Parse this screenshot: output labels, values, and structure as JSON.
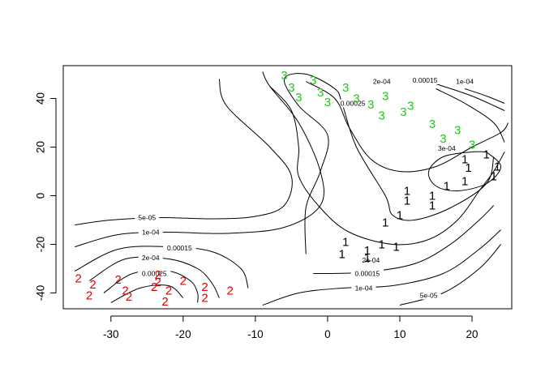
{
  "chart_data": {
    "type": "contour",
    "title": "",
    "xlabel": "",
    "ylabel": "",
    "xlim": [
      -36.6,
      25.5
    ],
    "ylim": [
      -46.5,
      53.5
    ],
    "x_ticks": [
      -30,
      -20,
      -10,
      0,
      10,
      20
    ],
    "y_ticks": [
      -40,
      -20,
      0,
      20,
      40
    ],
    "grid": false,
    "legend": "none",
    "colors": {
      "1": "#000000",
      "2": "#df0000",
      "3": "#1ec81e"
    },
    "contours": [
      {
        "label": "5e-05",
        "label_at": [
          -25.0,
          -9.0
        ],
        "points": [
          [
            -35,
            -12
          ],
          [
            -30,
            -10
          ],
          [
            -23,
            -9
          ],
          [
            -16,
            -9.5
          ],
          [
            -10,
            -8.5
          ],
          [
            -6,
            -4
          ],
          [
            -5,
            8
          ],
          [
            -8,
            20
          ],
          [
            -14,
            37
          ],
          [
            -15,
            48
          ]
        ]
      },
      {
        "label": "1e-04",
        "label_at": [
          -24.5,
          -15.0
        ],
        "points": [
          [
            -35,
            -21
          ],
          [
            -29,
            -16
          ],
          [
            -22,
            -15
          ],
          [
            -14,
            -15.5
          ],
          [
            -6,
            -13
          ],
          [
            -1,
            -4
          ],
          [
            -1,
            10
          ],
          [
            -4,
            30
          ],
          [
            -8,
            45
          ],
          [
            -9,
            51
          ]
        ]
      },
      {
        "label": "0.00015",
        "label_at": [
          -20.5,
          -21.5
        ],
        "points": [
          [
            -35,
            -31
          ],
          [
            -29,
            -22
          ],
          [
            -22,
            -21
          ],
          [
            -16,
            -23
          ],
          [
            -12,
            -30
          ],
          [
            -11,
            -38
          ]
        ]
      },
      {
        "label": "2e-04",
        "label_at": [
          -24.5,
          -25.5
        ],
        "points": [
          [
            -33,
            -35
          ],
          [
            -28,
            -26
          ],
          [
            -22,
            -26
          ],
          [
            -18,
            -30
          ],
          [
            -16,
            -36
          ],
          [
            -15,
            -42
          ]
        ]
      },
      {
        "label": "0.00025",
        "label_at": [
          -24.0,
          -32.0
        ],
        "points": [
          [
            -31,
            -40
          ],
          [
            -27,
            -32
          ],
          [
            -22,
            -31
          ],
          [
            -19,
            -35
          ],
          [
            -18,
            -40
          ],
          [
            -18,
            -44
          ]
        ]
      },
      {
        "label": "",
        "label_at": null,
        "points": [
          [
            -30,
            -44
          ],
          [
            -26,
            -38
          ],
          [
            -22,
            -37
          ],
          [
            -20,
            -42
          ]
        ]
      },
      {
        "label": "5e-05",
        "label_at": [
          14.0,
          -41.0
        ],
        "points": [
          [
            10,
            -45
          ],
          [
            16,
            -40
          ],
          [
            21,
            -30
          ],
          [
            24,
            -20
          ]
        ]
      },
      {
        "label": "1e-04",
        "label_at": [
          5.0,
          -38.0
        ],
        "points": [
          [
            -9,
            -45
          ],
          [
            -4,
            -40
          ],
          [
            2,
            -38
          ],
          [
            9,
            -37
          ],
          [
            16,
            -32
          ],
          [
            21,
            -22
          ],
          [
            24,
            -14
          ]
        ]
      },
      {
        "label": "0.00015",
        "label_at": [
          5.5,
          -32.0
        ],
        "points": [
          [
            -2,
            -32
          ],
          [
            5,
            -31.5
          ],
          [
            12,
            -28
          ],
          [
            17,
            -20
          ],
          [
            21,
            -10
          ],
          [
            23,
            -4
          ]
        ]
      },
      {
        "label": "2e-04",
        "label_at": [
          6.0,
          -26.5
        ],
        "points": [
          [
            -3,
            -24
          ],
          [
            -3,
            -5
          ],
          [
            -1,
            10
          ],
          [
            0,
            25
          ],
          [
            -4,
            37
          ],
          [
            -6,
            48
          ],
          [
            -3,
            50
          ],
          [
            1,
            44
          ],
          [
            2,
            38
          ],
          [
            4,
            20
          ],
          [
            8,
            0
          ],
          [
            9,
            -8
          ],
          [
            12,
            -10
          ],
          [
            17,
            -5
          ],
          [
            22,
            5
          ],
          [
            23,
            16
          ]
        ]
      },
      {
        "label": "2e-04",
        "label_at": [
          7.5,
          47.0
        ],
        "points": [
          [
            15,
            44
          ],
          [
            19,
            38
          ],
          [
            23,
            30
          ],
          [
            24.5,
            22
          ]
        ]
      },
      {
        "label": "1e-04",
        "label_at": [
          19.0,
          47.0
        ],
        "points": [
          [
            19,
            44
          ],
          [
            22,
            41
          ],
          [
            24.5,
            38
          ]
        ]
      },
      {
        "label": "0.00015",
        "label_at": [
          13.5,
          47.5
        ],
        "points": [
          [
            15,
            46
          ],
          [
            20,
            41
          ],
          [
            24.5,
            35
          ]
        ]
      },
      {
        "label": "0.00025",
        "label_at": [
          3.5,
          38.0
        ],
        "points": [
          [
            -8,
            45
          ],
          [
            -5,
            35
          ],
          [
            -4,
            20
          ],
          [
            -4,
            8
          ],
          [
            -1,
            -5
          ],
          [
            3,
            -15
          ],
          [
            9,
            -20
          ],
          [
            14,
            -18
          ],
          [
            18,
            -10
          ],
          [
            21,
            2
          ],
          [
            23,
            10
          ],
          [
            24.5,
            18
          ]
        ]
      },
      {
        "label": "",
        "label_at": null,
        "points": [
          [
            -3,
            47
          ],
          [
            1,
            40
          ],
          [
            3,
            28
          ],
          [
            6,
            15
          ],
          [
            10,
            10
          ],
          [
            15,
            12
          ],
          [
            20,
            20
          ],
          [
            24,
            26
          ],
          [
            25,
            30
          ]
        ]
      },
      {
        "label": "3e-04",
        "label_at": [
          16.5,
          19.5
        ],
        "points": [
          [
            22,
            18
          ],
          [
            20,
            18
          ],
          [
            16,
            16
          ],
          [
            14,
            10
          ],
          [
            15,
            4
          ],
          [
            18,
            2
          ],
          [
            22,
            5
          ],
          [
            24,
            12
          ],
          [
            22,
            18
          ]
        ]
      }
    ],
    "points": [
      {
        "group": "1",
        "x": 2,
        "y": -24
      },
      {
        "group": "1",
        "x": 2.5,
        "y": -19
      },
      {
        "group": "1",
        "x": 5.5,
        "y": -22.5
      },
      {
        "group": "1",
        "x": 5.5,
        "y": -25.5
      },
      {
        "group": "1",
        "x": 7.5,
        "y": -20
      },
      {
        "group": "1",
        "x": 9.5,
        "y": -21
      },
      {
        "group": "1",
        "x": 8,
        "y": -11
      },
      {
        "group": "1",
        "x": 10,
        "y": -8
      },
      {
        "group": "1",
        "x": 11,
        "y": -2
      },
      {
        "group": "1",
        "x": 11,
        "y": 2
      },
      {
        "group": "1",
        "x": 14.5,
        "y": -4
      },
      {
        "group": "1",
        "x": 14.5,
        "y": 0
      },
      {
        "group": "1",
        "x": 16.5,
        "y": 4
      },
      {
        "group": "1",
        "x": 19,
        "y": 6
      },
      {
        "group": "1",
        "x": 19,
        "y": 15
      },
      {
        "group": "1",
        "x": 19.5,
        "y": 11.5
      },
      {
        "group": "1",
        "x": 22,
        "y": 17
      },
      {
        "group": "1",
        "x": 23,
        "y": 8
      },
      {
        "group": "1",
        "x": 23.5,
        "y": 12
      },
      {
        "group": "2",
        "x": -34.5,
        "y": -34
      },
      {
        "group": "2",
        "x": -32.5,
        "y": -36.5
      },
      {
        "group": "2",
        "x": -33,
        "y": -41
      },
      {
        "group": "2",
        "x": -29,
        "y": -34.5
      },
      {
        "group": "2",
        "x": -28,
        "y": -39
      },
      {
        "group": "2",
        "x": -27.5,
        "y": -41.5
      },
      {
        "group": "2",
        "x": -24,
        "y": -37.5
      },
      {
        "group": "2",
        "x": -23.5,
        "y": -32.5
      },
      {
        "group": "2",
        "x": -23.5,
        "y": -35.5
      },
      {
        "group": "2",
        "x": -22,
        "y": -39
      },
      {
        "group": "2",
        "x": -22.5,
        "y": -43.5
      },
      {
        "group": "2",
        "x": -20,
        "y": -35
      },
      {
        "group": "2",
        "x": -17,
        "y": -37.5
      },
      {
        "group": "2",
        "x": -17,
        "y": -42
      },
      {
        "group": "2",
        "x": -13.5,
        "y": -39
      },
      {
        "group": "3",
        "x": -6,
        "y": 49.5
      },
      {
        "group": "3",
        "x": -5,
        "y": 44.5
      },
      {
        "group": "3",
        "x": -4,
        "y": 40.5
      },
      {
        "group": "3",
        "x": -2,
        "y": 47.5
      },
      {
        "group": "3",
        "x": -1,
        "y": 42.5
      },
      {
        "group": "3",
        "x": 0,
        "y": 38.5
      },
      {
        "group": "3",
        "x": 2.5,
        "y": 44.5
      },
      {
        "group": "3",
        "x": 4,
        "y": 40
      },
      {
        "group": "3",
        "x": 6,
        "y": 37.5
      },
      {
        "group": "3",
        "x": 7.5,
        "y": 33
      },
      {
        "group": "3",
        "x": 8,
        "y": 41
      },
      {
        "group": "3",
        "x": 10.5,
        "y": 34.5
      },
      {
        "group": "3",
        "x": 11.5,
        "y": 37
      },
      {
        "group": "3",
        "x": 14.5,
        "y": 29.5
      },
      {
        "group": "3",
        "x": 16,
        "y": 23.5
      },
      {
        "group": "3",
        "x": 18,
        "y": 27
      },
      {
        "group": "3",
        "x": 20,
        "y": 21
      }
    ]
  }
}
